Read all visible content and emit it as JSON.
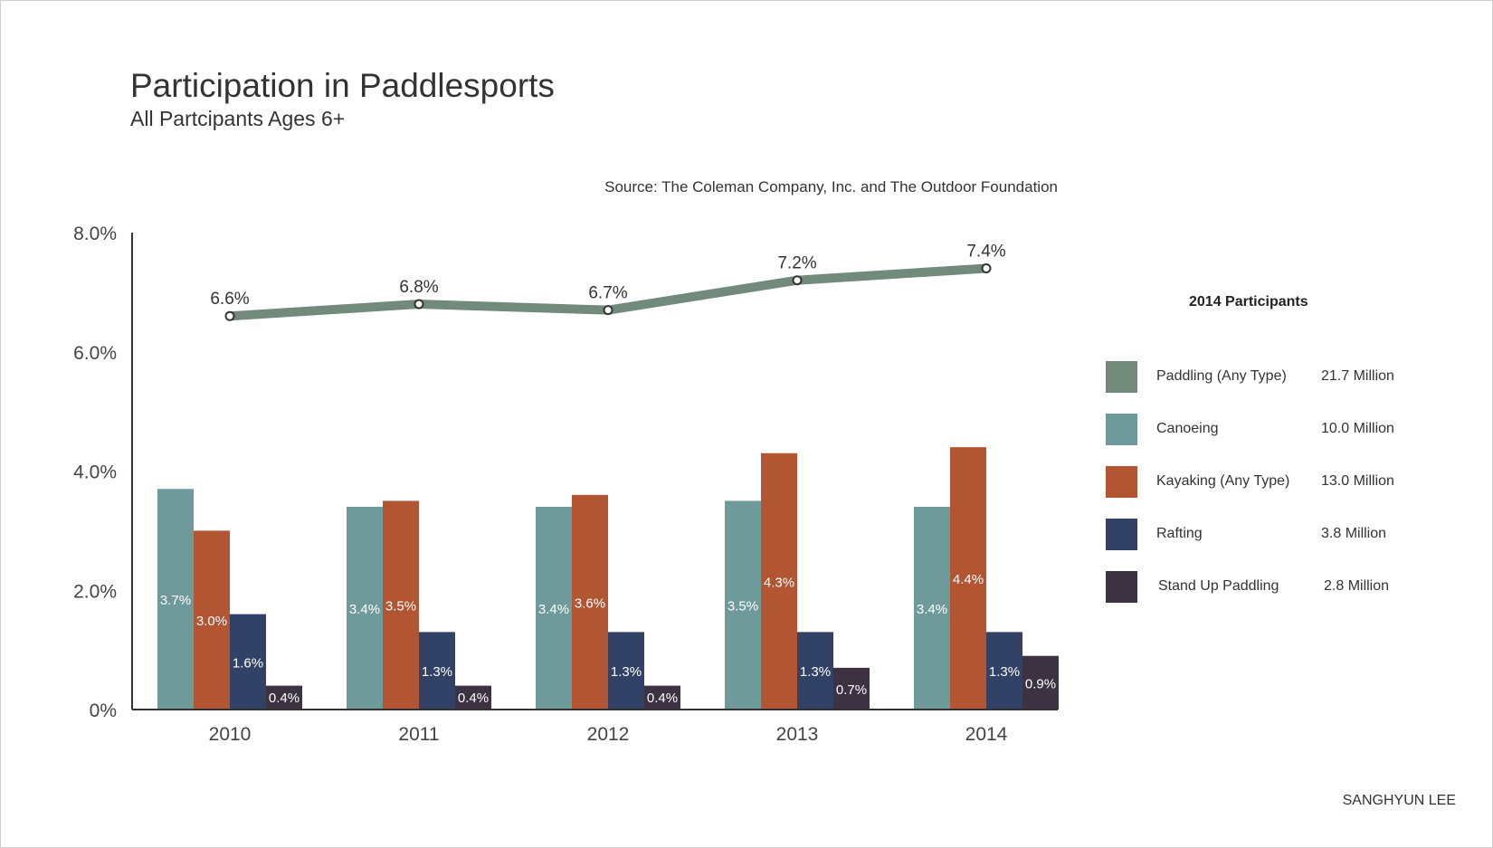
{
  "title": "Participation in Paddlesports",
  "subtitle": "All Partcipants Ages 6+",
  "source": "Source: The Coleman Company, Inc. and The Outdoor Foundation",
  "author": "SANGHYUN LEE",
  "legend": {
    "title": "2014 Participants",
    "items": [
      {
        "name": "Paddling (Any Type)",
        "value": "21.7 Million",
        "color": "#728a7b"
      },
      {
        "name": "Canoeing",
        "value": "10.0 Million",
        "color": "#6f9a9b"
      },
      {
        "name": "Kayaking (Any Type)",
        "value": "13.0 Million",
        "color": "#b15533"
      },
      {
        "name": "Rafting",
        "value": "3.8 Million",
        "color": "#324267"
      },
      {
        "name": "Stand Up Paddling",
        "value": "2.8 Million",
        "color": "#3d3242"
      }
    ]
  },
  "chart_data": {
    "type": "bar",
    "categories": [
      "2010",
      "2011",
      "2012",
      "2013",
      "2014"
    ],
    "y_ticks": [
      "0%",
      "2.0%",
      "4.0%",
      "6.0%",
      "8.0%"
    ],
    "ylim": [
      0,
      8
    ],
    "series": [
      {
        "name": "Canoeing",
        "color": "#6f9a9b",
        "values": [
          3.7,
          3.4,
          3.4,
          3.5,
          3.4
        ],
        "labels": [
          "3.7%",
          "3.4%",
          "3.4%",
          "3.5%",
          "3.4%"
        ]
      },
      {
        "name": "Kayaking (Any Type)",
        "color": "#b15533",
        "values": [
          3.0,
          3.5,
          3.6,
          4.3,
          4.4
        ],
        "labels": [
          "3.0%",
          "3.5%",
          "3.6%",
          "4.3%",
          "4.4%"
        ]
      },
      {
        "name": "Rafting",
        "color": "#324267",
        "values": [
          1.6,
          1.3,
          1.3,
          1.3,
          1.3
        ],
        "labels": [
          "1.6%",
          "1.3%",
          "1.3%",
          "1.3%",
          "1.3%"
        ]
      },
      {
        "name": "Stand Up Paddling",
        "color": "#3d3242",
        "values": [
          0.4,
          0.4,
          0.4,
          0.7,
          0.9
        ],
        "labels": [
          "0.4%",
          "0.4%",
          "0.4%",
          "0.7%",
          "0.9%"
        ]
      }
    ],
    "line_series": {
      "name": "Paddling (Any Type)",
      "color": "#728a7b",
      "values": [
        6.6,
        6.8,
        6.7,
        7.2,
        7.4
      ],
      "labels": [
        "6.6%",
        "6.8%",
        "6.7%",
        "7.2%",
        "7.4%"
      ]
    },
    "grid": false
  }
}
